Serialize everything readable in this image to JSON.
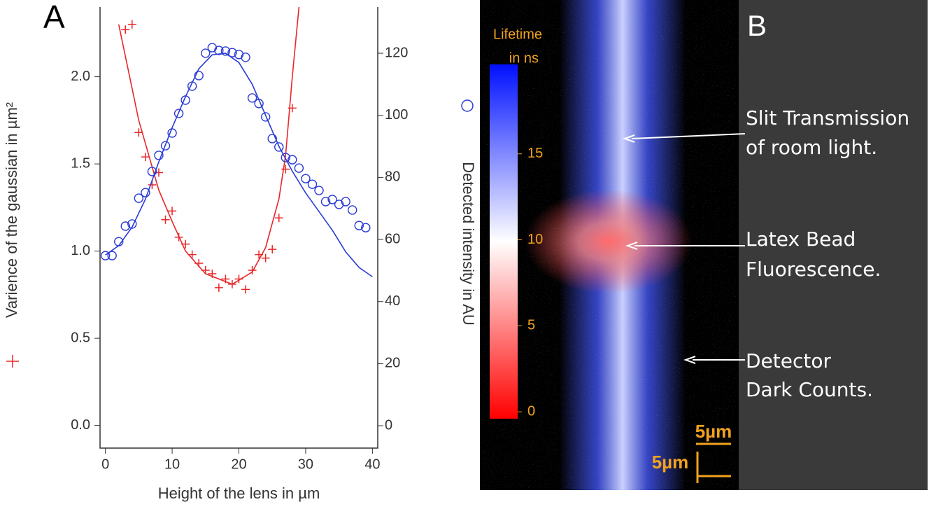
{
  "chart_data": [
    {
      "type": "scatter",
      "panel_label": "A",
      "x_label": "Height of the lens in µm",
      "y_label": "Varience of the gaussian in µm²",
      "y2_label": "Detected intensity in AU",
      "xlim": [
        -0.8,
        40.8
      ],
      "ylim": [
        -0.13,
        2.4
      ],
      "y2lim": [
        -7.2,
        134.9
      ],
      "xticks": [
        0,
        10,
        20,
        30,
        40
      ],
      "yticks": [
        {
          "value": 0,
          "label": "0.0"
        },
        0.5,
        {
          "value": 1,
          "label": "1.0"
        },
        1.5,
        {
          "value": 2,
          "label": "2.0"
        }
      ],
      "y2ticks": [
        0,
        20,
        40,
        60,
        80,
        100,
        120
      ],
      "series": [
        {
          "marker": "plus",
          "color": "#e8272a",
          "x": [
            3,
            4,
            5,
            6,
            7,
            8,
            9,
            10,
            11,
            12,
            13,
            14,
            15,
            16,
            17,
            18,
            19,
            20,
            21,
            22,
            23,
            24,
            25,
            26,
            27,
            28
          ],
          "values": [
            2.27,
            2.3,
            1.68,
            1.54,
            1.38,
            1.45,
            1.18,
            1.23,
            1.08,
            1.04,
            0.98,
            0.93,
            0.89,
            0.87,
            0.79,
            0.84,
            0.81,
            0.84,
            0.78,
            0.89,
            0.98,
            0.96,
            1.01,
            1.19,
            1.47,
            1.82
          ]
        },
        {
          "marker": "line",
          "color": "#e8272a",
          "x": [
            2,
            5,
            8,
            10,
            12,
            15,
            19,
            22,
            24,
            26,
            27,
            28,
            29
          ],
          "values": [
            2.3,
            1.75,
            1.35,
            1.17,
            1.0,
            0.87,
            0.81,
            0.88,
            1.02,
            1.3,
            1.55,
            2.0,
            2.4
          ]
        },
        {
          "marker": "circle",
          "color": "#2a3bd6",
          "axis": "y2",
          "x": [
            0,
            1,
            2,
            3,
            4,
            5,
            6,
            7,
            8,
            9,
            10,
            11,
            12,
            13,
            14,
            15,
            16,
            17,
            18,
            19,
            20,
            21,
            22,
            23,
            24,
            25,
            26,
            27,
            28,
            29,
            30,
            31,
            32,
            33,
            34,
            35,
            36,
            37,
            38,
            39
          ],
          "values": [
            54.8,
            54.8,
            59.3,
            64.3,
            65,
            73.3,
            75.1,
            81.9,
            87.1,
            90.2,
            94.3,
            100.6,
            104.9,
            109.4,
            112.8,
            120,
            121.8,
            120.9,
            120.7,
            120.2,
            119.6,
            118.7,
            105.6,
            103.8,
            99.5,
            92.5,
            89.8,
            86.4,
            85.7,
            83,
            79.6,
            77.8,
            75.8,
            72.2,
            72.9,
            71.3,
            72.2,
            69.5,
            64.5,
            63.8
          ]
        },
        {
          "marker": "line",
          "color": "#2a3bd6",
          "axis": "y2",
          "x": [
            0,
            2,
            4,
            6,
            8,
            10,
            12,
            14,
            16,
            18,
            20,
            22,
            24,
            26,
            28,
            30,
            32,
            34,
            36,
            38,
            40
          ],
          "values": [
            55,
            58,
            64,
            73,
            85,
            96,
            106,
            115,
            119.5,
            120,
            117,
            110,
            100,
            90,
            82,
            75,
            69,
            63,
            56,
            51,
            48
          ]
        }
      ]
    },
    {
      "type": "image",
      "panel_label": "B",
      "colorbar_label": [
        "Lifetime",
        "in ns"
      ],
      "clim": [
        -0.4,
        20.2
      ],
      "cticks": [
        0,
        5,
        10,
        15
      ],
      "annotations": [
        {
          "lines": [
            "Slit Transmission",
            "of room light."
          ]
        },
        {
          "lines": [
            "Latex Bead",
            "Fluorescence."
          ]
        },
        {
          "lines": [
            "Detector",
            "Dark Counts."
          ]
        }
      ],
      "scale_bars": [
        "5µm",
        "5µm"
      ]
    }
  ]
}
